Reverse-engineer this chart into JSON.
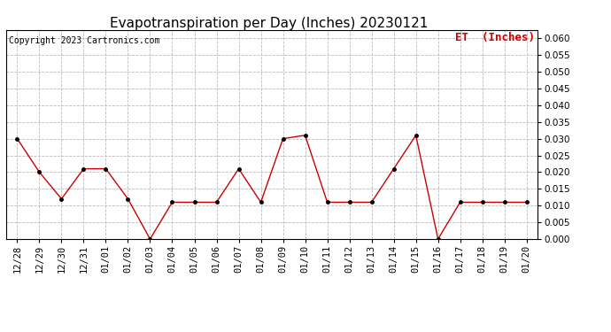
{
  "title": "Evapotranspiration per Day (Inches) 20230121",
  "copyright_text": "Copyright 2023 Cartronics.com",
  "legend_label": "ET  (Inches)",
  "x_labels": [
    "12/28",
    "12/29",
    "12/30",
    "12/31",
    "01/01",
    "01/02",
    "01/03",
    "01/04",
    "01/05",
    "01/06",
    "01/07",
    "01/08",
    "01/09",
    "01/10",
    "01/11",
    "01/12",
    "01/13",
    "01/14",
    "01/15",
    "01/16",
    "01/17",
    "01/18",
    "01/19",
    "01/20"
  ],
  "et_values": [
    0.03,
    0.02,
    0.012,
    0.021,
    0.021,
    0.012,
    0.0,
    0.011,
    0.011,
    0.011,
    0.021,
    0.011,
    0.03,
    0.031,
    0.011,
    0.011,
    0.011,
    0.021,
    0.031,
    0.0,
    0.011,
    0.011,
    0.011,
    0.011
  ],
  "line_color": "#cc0000",
  "marker_color": "#000000",
  "ylim": [
    0.0,
    0.0625
  ],
  "yticks": [
    0.0,
    0.005,
    0.01,
    0.015,
    0.02,
    0.025,
    0.03,
    0.035,
    0.04,
    0.045,
    0.05,
    0.055,
    0.06
  ],
  "background_color": "#ffffff",
  "grid_color": "#bbbbbb",
  "title_fontsize": 11,
  "copyright_fontsize": 7,
  "legend_fontsize": 9,
  "tick_fontsize": 7.5
}
